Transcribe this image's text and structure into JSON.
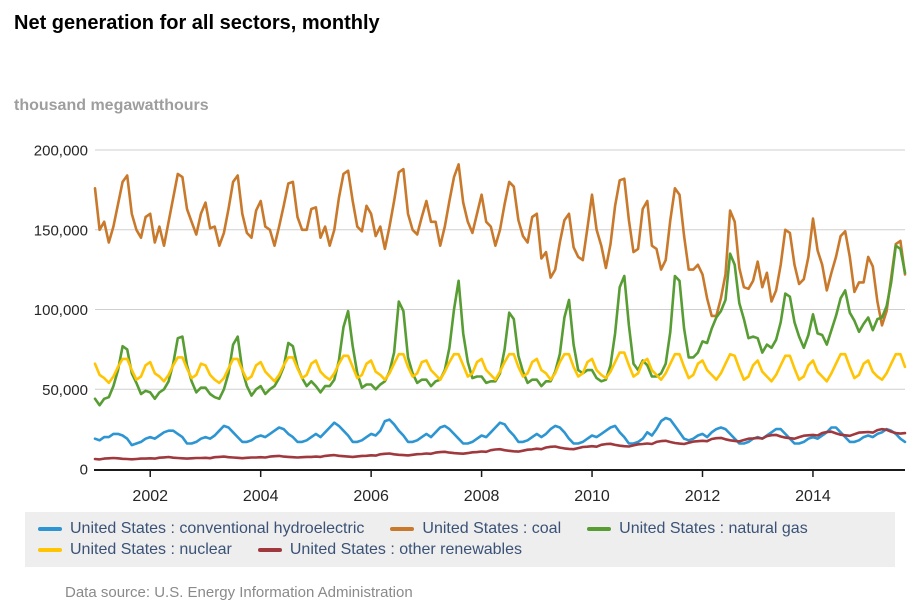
{
  "header": {
    "title": "Net generation for all sectors, monthly"
  },
  "units_label": "thousand megawatthours",
  "footer": {
    "data_source": "Data source: U.S. Energy Information Administration"
  },
  "colors": {
    "hydro_blue": "#2c95d2",
    "coal_orange": "#c9792b",
    "gas_green": "#579d33",
    "nuclear_yellow": "#ffc402",
    "renewables_red": "#a0393e",
    "gridline": "#cfcfcf",
    "axis": "#1a1a1a",
    "legend_background": "#eeeeee",
    "legend_text": "#3a5276"
  },
  "chart_data": {
    "type": "line",
    "title": "Net generation for all sectors, monthly",
    "ylabel": "thousand megawatthours",
    "xlabel": "",
    "ylim": [
      0,
      200000
    ],
    "grid": "horizontal",
    "legend_position": "bottom",
    "x_start": {
      "year": 2001,
      "month": 1
    },
    "x_end": {
      "year": 2015,
      "month": 9
    },
    "x_ticks": [
      {
        "year": 2002,
        "label": "2002"
      },
      {
        "year": 2004,
        "label": "2004"
      },
      {
        "year": 2006,
        "label": "2006"
      },
      {
        "year": 2008,
        "label": "2008"
      },
      {
        "year": 2010,
        "label": "2010"
      },
      {
        "year": 2012,
        "label": "2012"
      },
      {
        "year": 2014,
        "label": "2014"
      }
    ],
    "y_ticks": [
      {
        "value": 0,
        "label": "0"
      },
      {
        "value": 50000,
        "label": "50,000"
      },
      {
        "value": 100000,
        "label": "100,000"
      },
      {
        "value": 150000,
        "label": "150,000"
      },
      {
        "value": 200000,
        "label": "200,000"
      }
    ],
    "value_multiplier": 1000,
    "series": [
      {
        "name": "United States : conventional hydroelectric",
        "color": "#2c95d2",
        "values": [
          19,
          18,
          20,
          20,
          22,
          22,
          21,
          19,
          15,
          16,
          17,
          19,
          20,
          19,
          21,
          23,
          24,
          24,
          22,
          20,
          16,
          16,
          17,
          19,
          20,
          19,
          21,
          24,
          27,
          26,
          23,
          20,
          17,
          17,
          18,
          20,
          21,
          20,
          22,
          24,
          26,
          25,
          22,
          20,
          17,
          17,
          18,
          20,
          22,
          20,
          23,
          26,
          29,
          27,
          24,
          21,
          17,
          17,
          18,
          20,
          22,
          21,
          24,
          30,
          31,
          28,
          24,
          21,
          17,
          17,
          18,
          20,
          22,
          20,
          23,
          26,
          27,
          25,
          22,
          19,
          16,
          16,
          17,
          19,
          21,
          20,
          23,
          26,
          29,
          28,
          24,
          21,
          17,
          17,
          18,
          20,
          22,
          20,
          22,
          25,
          27,
          26,
          23,
          19,
          16,
          16,
          17,
          19,
          21,
          20,
          22,
          24,
          26,
          27,
          23,
          20,
          16,
          16,
          17,
          19,
          23,
          21,
          25,
          30,
          32,
          31,
          27,
          23,
          19,
          18,
          19,
          21,
          22,
          20,
          23,
          25,
          26,
          25,
          22,
          19,
          16,
          16,
          17,
          19,
          20,
          19,
          21,
          23,
          25,
          25,
          22,
          19,
          16,
          16,
          17,
          19,
          20,
          19,
          21,
          23,
          26,
          26,
          23,
          20,
          17,
          17,
          18,
          20,
          21,
          20,
          22,
          23,
          25,
          24,
          22,
          19,
          17
        ]
      },
      {
        "name": "United States : coal",
        "color": "#c9792b",
        "values": [
          176,
          150,
          155,
          142,
          152,
          166,
          180,
          184,
          160,
          150,
          145,
          158,
          160,
          142,
          152,
          140,
          155,
          170,
          185,
          183,
          163,
          155,
          147,
          160,
          167,
          151,
          152,
          140,
          148,
          163,
          180,
          184,
          160,
          148,
          145,
          162,
          168,
          152,
          150,
          140,
          152,
          165,
          179,
          180,
          158,
          150,
          150,
          163,
          164,
          145,
          152,
          140,
          150,
          170,
          185,
          187,
          168,
          152,
          149,
          165,
          160,
          146,
          152,
          138,
          152,
          168,
          186,
          188,
          160,
          150,
          147,
          158,
          168,
          155,
          155,
          140,
          152,
          168,
          183,
          191,
          167,
          155,
          148,
          160,
          172,
          155,
          152,
          140,
          150,
          166,
          180,
          177,
          156,
          146,
          142,
          158,
          160,
          132,
          136,
          120,
          125,
          142,
          156,
          160,
          139,
          133,
          131,
          151,
          172,
          150,
          140,
          126,
          141,
          165,
          181,
          182,
          156,
          136,
          138,
          163,
          168,
          140,
          138,
          125,
          131,
          156,
          176,
          172,
          146,
          125,
          125,
          128,
          122,
          107,
          96,
          96,
          107,
          122,
          162,
          155,
          126,
          114,
          113,
          118,
          130,
          114,
          123,
          105,
          112,
          128,
          150,
          148,
          128,
          116,
          119,
          133,
          157,
          137,
          128,
          112,
          123,
          133,
          146,
          149,
          133,
          111,
          117,
          117,
          133,
          127,
          105,
          90,
          99,
          120,
          141,
          143,
          122
        ]
      },
      {
        "name": "United States : natural gas",
        "color": "#579d33",
        "values": [
          44,
          40,
          44,
          45,
          52,
          62,
          77,
          75,
          60,
          54,
          47,
          49,
          48,
          44,
          48,
          50,
          55,
          66,
          82,
          83,
          65,
          55,
          48,
          51,
          51,
          47,
          45,
          44,
          50,
          60,
          78,
          83,
          62,
          52,
          46,
          50,
          52,
          47,
          50,
          52,
          57,
          64,
          79,
          77,
          64,
          57,
          52,
          55,
          52,
          48,
          52,
          52,
          56,
          68,
          89,
          99,
          77,
          60,
          51,
          53,
          53,
          50,
          53,
          55,
          61,
          73,
          105,
          99,
          70,
          60,
          54,
          56,
          56,
          52,
          55,
          56,
          62,
          76,
          100,
          118,
          85,
          67,
          57,
          58,
          58,
          54,
          55,
          55,
          60,
          75,
          98,
          94,
          71,
          61,
          54,
          56,
          56,
          52,
          55,
          55,
          61,
          72,
          95,
          106,
          78,
          62,
          60,
          62,
          62,
          57,
          55,
          56,
          65,
          85,
          114,
          121,
          90,
          66,
          62,
          68,
          65,
          58,
          58,
          60,
          66,
          86,
          121,
          118,
          88,
          70,
          70,
          73,
          80,
          79,
          88,
          95,
          99,
          106,
          135,
          128,
          104,
          94,
          82,
          83,
          82,
          73,
          78,
          76,
          81,
          92,
          110,
          108,
          92,
          83,
          76,
          84,
          97,
          85,
          84,
          78,
          87,
          96,
          107,
          112,
          98,
          93,
          86,
          91,
          95,
          87,
          94,
          95,
          102,
          117,
          140,
          138,
          123
        ]
      },
      {
        "name": "United States : nuclear",
        "color": "#ffc402",
        "values": [
          66,
          59,
          57,
          54,
          58,
          64,
          69,
          69,
          62,
          56,
          58,
          65,
          67,
          60,
          58,
          55,
          59,
          65,
          70,
          70,
          63,
          57,
          59,
          66,
          65,
          59,
          56,
          54,
          57,
          63,
          69,
          69,
          62,
          56,
          58,
          65,
          67,
          61,
          58,
          55,
          59,
          65,
          70,
          70,
          63,
          57,
          59,
          66,
          68,
          61,
          58,
          56,
          60,
          66,
          71,
          71,
          64,
          57,
          59,
          66,
          68,
          61,
          59,
          56,
          60,
          66,
          72,
          72,
          64,
          58,
          60,
          67,
          68,
          62,
          59,
          56,
          61,
          67,
          72,
          72,
          65,
          58,
          60,
          67,
          69,
          62,
          59,
          56,
          61,
          67,
          72,
          72,
          64,
          58,
          60,
          67,
          69,
          62,
          60,
          56,
          60,
          67,
          72,
          72,
          64,
          58,
          60,
          67,
          69,
          62,
          59,
          57,
          61,
          67,
          73,
          73,
          65,
          58,
          60,
          67,
          69,
          62,
          59,
          56,
          60,
          66,
          72,
          72,
          64,
          57,
          59,
          66,
          68,
          62,
          59,
          56,
          60,
          66,
          72,
          71,
          63,
          56,
          58,
          65,
          68,
          61,
          58,
          55,
          59,
          65,
          71,
          71,
          63,
          56,
          58,
          65,
          68,
          61,
          58,
          55,
          60,
          66,
          72,
          72,
          64,
          57,
          59,
          66,
          68,
          61,
          58,
          56,
          60,
          66,
          72,
          72,
          64
        ]
      },
      {
        "name": "United States : other renewables",
        "color": "#a0393e",
        "values": [
          6.3,
          6.0,
          6.5,
          6.7,
          6.9,
          6.7,
          6.4,
          6.3,
          6.1,
          6.3,
          6.5,
          6.5,
          6.7,
          6.5,
          7.1,
          7.3,
          7.5,
          7.1,
          6.9,
          6.7,
          6.5,
          6.7,
          6.9,
          6.9,
          7.0,
          6.8,
          7.4,
          7.6,
          7.8,
          7.4,
          7.2,
          7.0,
          6.8,
          7.0,
          7.2,
          7.2,
          7.4,
          7.2,
          7.8,
          8.0,
          8.2,
          7.8,
          7.6,
          7.4,
          7.2,
          7.4,
          7.6,
          7.6,
          7.8,
          7.6,
          8.2,
          8.5,
          8.7,
          8.3,
          8.0,
          7.8,
          7.6,
          7.9,
          8.2,
          8.3,
          8.6,
          8.4,
          9.2,
          9.5,
          9.7,
          9.2,
          8.9,
          8.7,
          8.5,
          8.9,
          9.3,
          9.4,
          9.7,
          9.5,
          10.3,
          10.6,
          10.8,
          10.3,
          10.0,
          9.8,
          9.6,
          10.0,
          10.5,
          10.6,
          11.0,
          10.8,
          11.8,
          12.2,
          12.4,
          11.8,
          11.4,
          11.1,
          10.9,
          11.5,
          12.1,
          12.3,
          12.7,
          12.4,
          13.5,
          13.9,
          14.1,
          13.4,
          12.9,
          12.6,
          12.4,
          13.1,
          13.8,
          14.0,
          14.3,
          14.0,
          15.2,
          15.6,
          15.8,
          15.1,
          14.6,
          14.3,
          14.1,
          14.8,
          15.5,
          15.7,
          16.0,
          15.7,
          17.0,
          17.5,
          17.7,
          16.9,
          16.3,
          15.9,
          15.7,
          16.5,
          17.2,
          17.4,
          17.7,
          17.4,
          18.8,
          19.3,
          19.5,
          18.6,
          18.0,
          17.6,
          17.3,
          18.2,
          19.0,
          19.2,
          19.5,
          19.1,
          20.6,
          21.2,
          21.4,
          20.4,
          19.7,
          19.3,
          19.0,
          20.0,
          20.9,
          21.1,
          21.4,
          21.0,
          22.6,
          23.2,
          23.4,
          22.3,
          21.5,
          21.1,
          20.8,
          21.8,
          22.8,
          23.0,
          23.2,
          22.8,
          24.4,
          25.0,
          24.6,
          23.4,
          22.6,
          22.2,
          22.5
        ]
      }
    ]
  }
}
